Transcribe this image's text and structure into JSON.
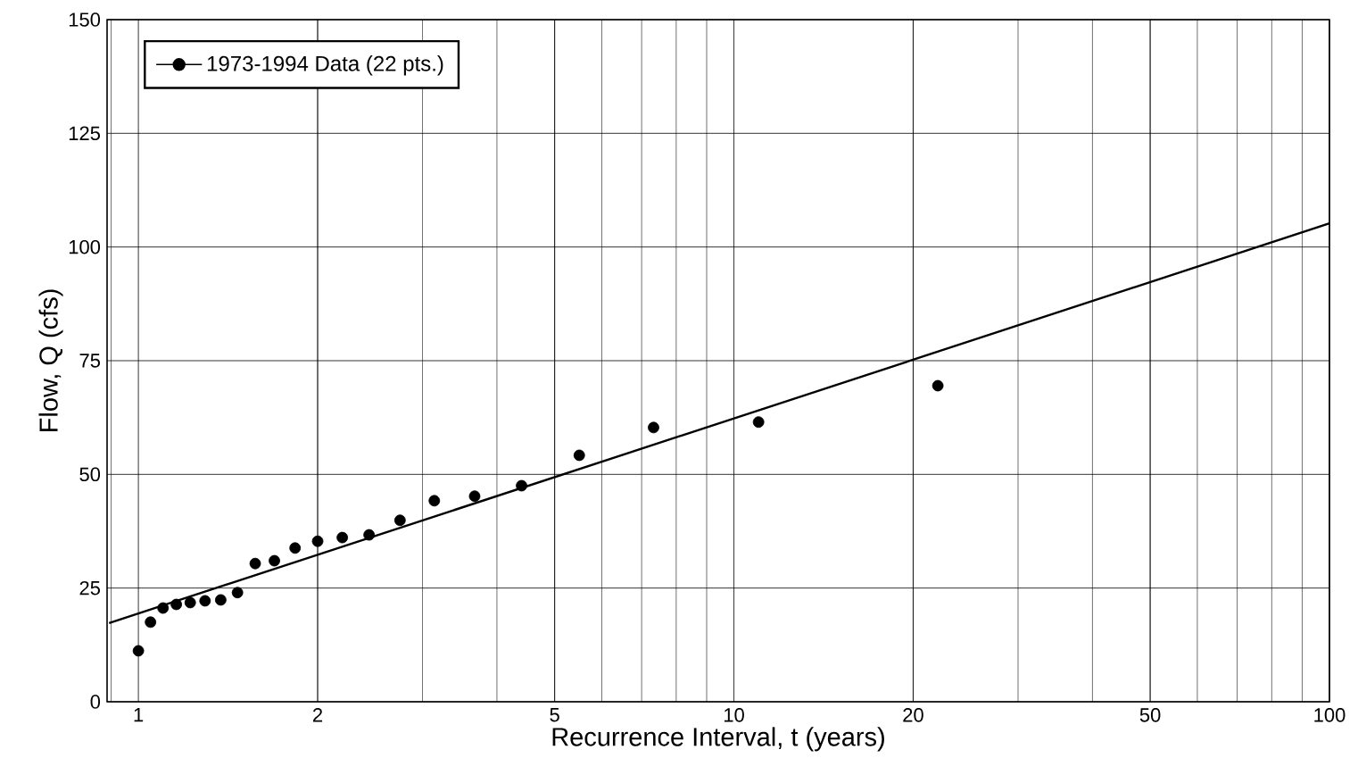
{
  "chart_data": {
    "type": "scatter",
    "xlabel": "Recurrence Interval, t (years)",
    "ylabel": "Flow, Q (cfs)",
    "log": "x",
    "grid": true,
    "legend": "top left",
    "xlim": [
      0.886,
      100
    ],
    "ylim": [
      0,
      150
    ],
    "xticks": [
      1,
      2,
      5,
      10,
      20,
      50,
      100
    ],
    "yticks": [
      0,
      25,
      50,
      75,
      100,
      125,
      150
    ],
    "series": [
      {
        "name": "1973-1994 Data (22 pts.)",
        "marker": "circle",
        "color": "#000000",
        "x": [
          22,
          11,
          7.33,
          5.5,
          4.4,
          3.67,
          3.14,
          2.75,
          2.44,
          2.2,
          2.0,
          1.833,
          1.692,
          1.571,
          1.467,
          1.375,
          1.294,
          1.222,
          1.158,
          1.1,
          1.048,
          1.0
        ],
        "values": [
          69.5,
          61.5,
          60.3,
          54.2,
          47.5,
          45.2,
          44.2,
          39.9,
          36.7,
          36.1,
          35.3,
          33.8,
          31.0,
          30.4,
          24.0,
          22.4,
          22.2,
          21.8,
          21.4,
          20.6,
          17.5,
          11.2
        ]
      },
      {
        "type": "line",
        "marker": "none",
        "color": "#000000",
        "line_style": "solid",
        "x": [
          0.893,
          100
        ],
        "values": [
          17.3,
          105.2
        ]
      }
    ]
  }
}
